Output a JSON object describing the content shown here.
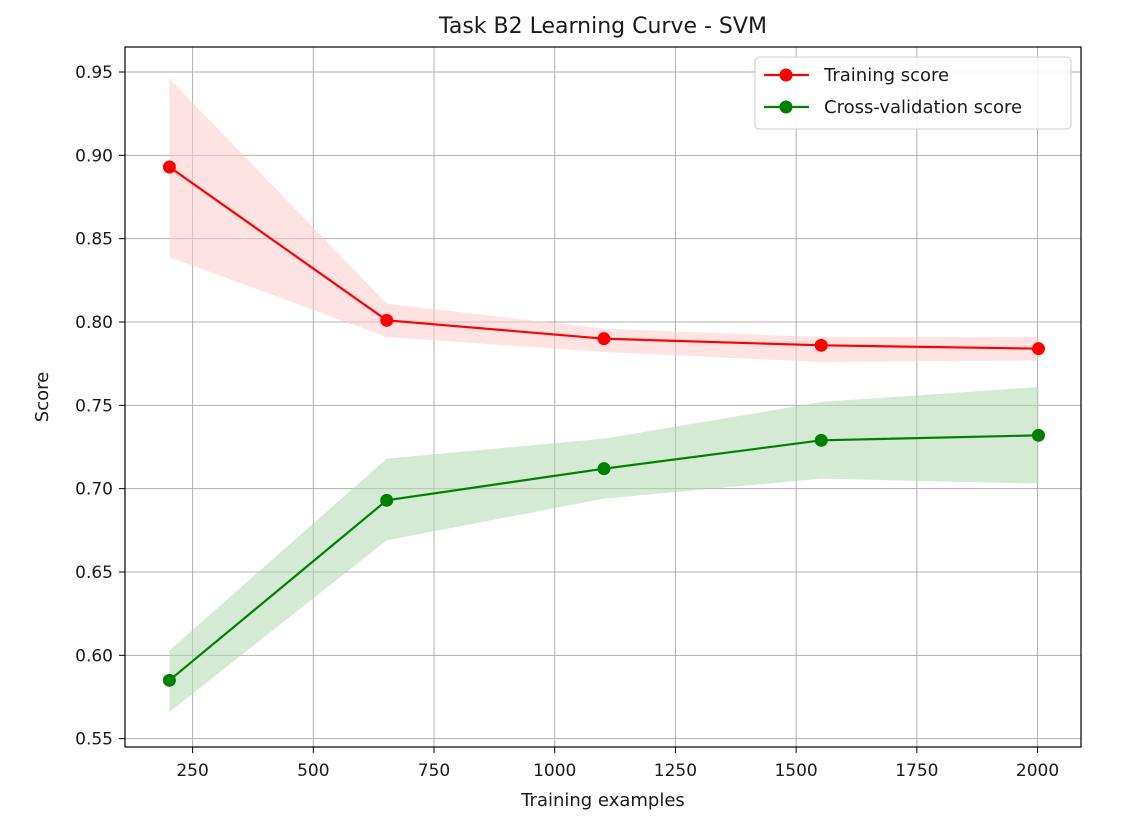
{
  "chart_data": {
    "type": "line",
    "title": "Task B2 Learning Curve - SVM",
    "xlabel": "Training examples",
    "ylabel": "Score",
    "xlim": [
      110,
      2090
    ],
    "ylim": [
      0.545,
      0.965
    ],
    "xticks": [
      250,
      500,
      750,
      1000,
      1250,
      1500,
      1750,
      2000
    ],
    "yticks": [
      0.55,
      0.6,
      0.65,
      0.7,
      0.75,
      0.8,
      0.85,
      0.9,
      0.95
    ],
    "xtick_labels": [
      "250",
      "500",
      "750",
      "1000",
      "1250",
      "1500",
      "1750",
      "2000"
    ],
    "ytick_labels": [
      "0.55",
      "0.60",
      "0.65",
      "0.70",
      "0.75",
      "0.80",
      "0.85",
      "0.90",
      "0.95"
    ],
    "grid": true,
    "legend_position": "top-right",
    "x": [
      202,
      652,
      1102,
      1552,
      2002
    ],
    "series": [
      {
        "name": "Training score",
        "color": "#ff0000",
        "fill_color": "#ffcccc",
        "values": [
          0.893,
          0.801,
          0.79,
          0.786,
          0.784
        ],
        "upper": [
          0.946,
          0.811,
          0.796,
          0.791,
          0.791
        ],
        "lower": [
          0.839,
          0.791,
          0.782,
          0.776,
          0.777
        ]
      },
      {
        "name": "Cross-validation score",
        "color": "#008000",
        "fill_color": "#b3d9b3",
        "values": [
          0.585,
          0.693,
          0.712,
          0.729,
          0.732
        ],
        "upper": [
          0.603,
          0.718,
          0.73,
          0.752,
          0.761
        ],
        "lower": [
          0.566,
          0.669,
          0.694,
          0.706,
          0.703
        ]
      }
    ]
  }
}
